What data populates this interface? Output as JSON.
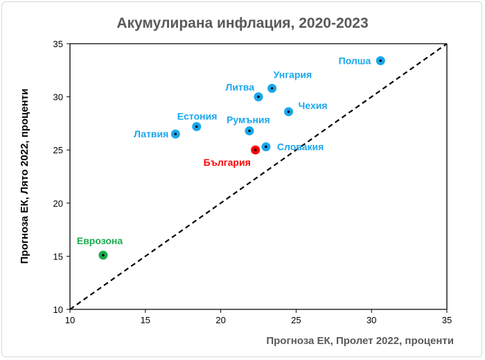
{
  "chart_data": {
    "type": "scatter",
    "title": "Акумулирана инфлация, 2020-2023",
    "xlabel": "Прогноза ЕК, Пролет 2022, проценти",
    "ylabel": "Прогноза ЕК, Лято 2022, проценти",
    "xlim": [
      10,
      35
    ],
    "ylim": [
      10,
      35
    ],
    "xticks": [
      10,
      15,
      20,
      25,
      30,
      35
    ],
    "yticks": [
      10,
      15,
      20,
      25,
      30,
      35
    ],
    "grid": false,
    "reference_line": "y = x (dashed)",
    "colors": {
      "default": "#1aa7ec",
      "highlight": "#ff0000",
      "eurozone": "#1aab4f",
      "title": "#595959"
    },
    "points": [
      {
        "label": "Полша",
        "x": 30.6,
        "y": 33.4,
        "group": "default"
      },
      {
        "label": "Унгария",
        "x": 23.4,
        "y": 30.8,
        "group": "default"
      },
      {
        "label": "Литва",
        "x": 22.5,
        "y": 30.0,
        "group": "default"
      },
      {
        "label": "Чехия",
        "x": 24.5,
        "y": 28.6,
        "group": "default"
      },
      {
        "label": "Естония",
        "x": 18.4,
        "y": 27.2,
        "group": "default"
      },
      {
        "label": "Латвия",
        "x": 17.0,
        "y": 26.5,
        "group": "default"
      },
      {
        "label": "Румъния",
        "x": 21.9,
        "y": 26.8,
        "group": "default"
      },
      {
        "label": "Словакия",
        "x": 23.0,
        "y": 25.3,
        "group": "default"
      },
      {
        "label": "България",
        "x": 22.3,
        "y": 25.0,
        "group": "highlight"
      },
      {
        "label": "Еврозона",
        "x": 12.2,
        "y": 15.1,
        "group": "eurozone"
      }
    ]
  }
}
